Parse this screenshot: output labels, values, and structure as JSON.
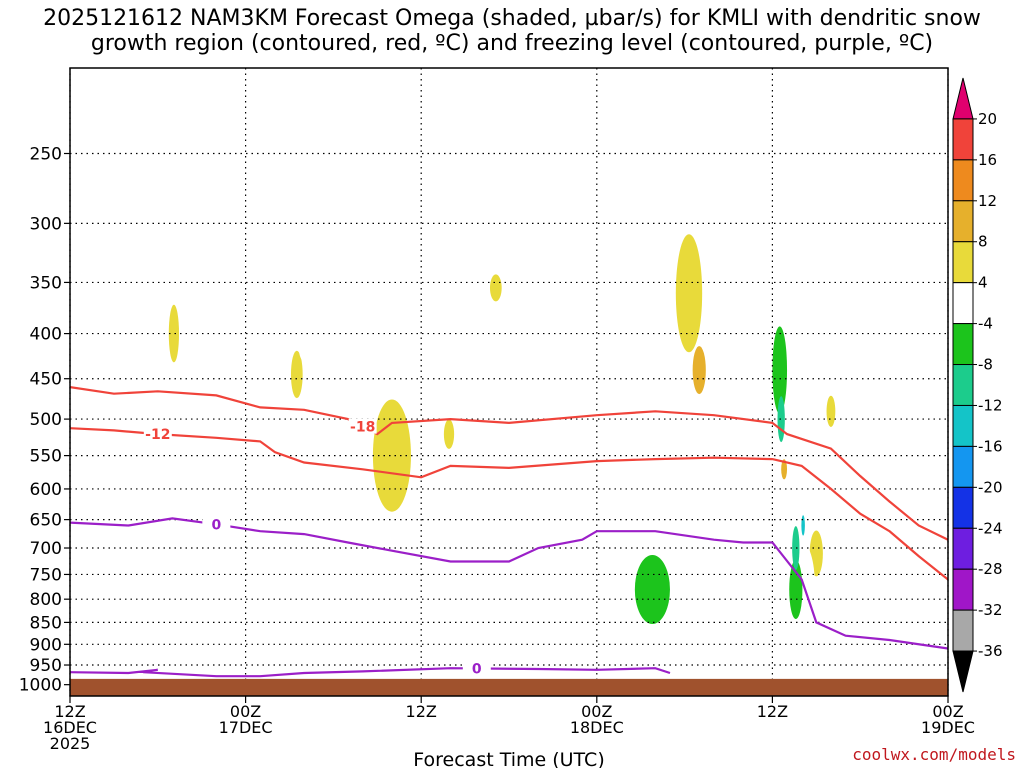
{
  "title_line1": "2025121612 NAM3KM Forecast Omega (shaded, µbar/s) for KMLI with dendritic snow",
  "title_line2": "growth region (contoured, red, ºC) and freezing level (contoured, purple, ºC)",
  "credit": "coolwx.com/models",
  "colors": {
    "terrain": "#a0522d",
    "dgz": "#f0433a",
    "freezing": "#9b1fc8",
    "grid": "#000000"
  },
  "chart_data": {
    "type": "heatmap",
    "xlabel": "Forecast Time (UTC)",
    "ylabel": "",
    "x_ticks": [
      {
        "hours": 0,
        "lines": [
          "12Z",
          "16DEC",
          "2025"
        ]
      },
      {
        "hours": 12,
        "lines": [
          "00Z",
          "17DEC"
        ]
      },
      {
        "hours": 24,
        "lines": [
          "12Z"
        ]
      },
      {
        "hours": 36,
        "lines": [
          "00Z",
          "18DEC"
        ]
      },
      {
        "hours": 48,
        "lines": [
          "12Z"
        ]
      },
      {
        "hours": 60,
        "lines": [
          "00Z",
          "19DEC"
        ]
      }
    ],
    "xlim": [
      0,
      60
    ],
    "y_ticks": [
      250,
      300,
      350,
      400,
      450,
      500,
      550,
      600,
      650,
      700,
      750,
      800,
      850,
      900,
      950,
      1000
    ],
    "ylim_hPa": [
      200,
      1030
    ],
    "colorbar": {
      "unit": "µbar/s",
      "labels": [
        "20",
        "16",
        "12",
        "8",
        "4",
        "-4",
        "-8",
        "-12",
        "-16",
        "-20",
        "-24",
        "-28",
        "-32",
        "-36"
      ],
      "colors": [
        "#e0006e",
        "#f0433a",
        "#ee8a1e",
        "#e6b02c",
        "#e8da3a",
        "#ffffff",
        "#1cc41c",
        "#1ccc8c",
        "#14c4c8",
        "#1496f0",
        "#1432e6",
        "#6e1ee0",
        "#a016c8",
        "#a8a8a8",
        "#000000"
      ]
    },
    "omega_regions": [
      {
        "level": "4",
        "x": 15.5,
        "p": 445,
        "w": 0.4,
        "hp": 55
      },
      {
        "level": "4",
        "x": 7.1,
        "p": 400,
        "w": 0.35,
        "hp": 60
      },
      {
        "level": "4",
        "x": 22.0,
        "p": 550,
        "w": 1.3,
        "hp": 160
      },
      {
        "level": "4",
        "x": 25.9,
        "p": 520,
        "w": 0.35,
        "hp": 40
      },
      {
        "level": "4",
        "x": 29.1,
        "p": 355,
        "w": 0.4,
        "hp": 25
      },
      {
        "level": "4",
        "x": 42.3,
        "p": 360,
        "w": 0.9,
        "hp": 110
      },
      {
        "level": "4",
        "x": 51.0,
        "p": 710,
        "w": 0.45,
        "hp": 85
      },
      {
        "level": "4",
        "x": 52.0,
        "p": 490,
        "w": 0.3,
        "hp": 40
      },
      {
        "level": "8",
        "x": 43.0,
        "p": 440,
        "w": 0.45,
        "hp": 55
      },
      {
        "level": "8",
        "x": 48.8,
        "p": 570,
        "w": 0.2,
        "hp": 30
      },
      {
        "level": "-4",
        "x": 13.0,
        "p": 380,
        "w": 0.35,
        "hp": 100
      },
      {
        "level": "-4",
        "x": 15.9,
        "p": 400,
        "w": 0.35,
        "hp": 55
      },
      {
        "level": "-4",
        "x": 26.3,
        "p": 300,
        "w": 0.25,
        "hp": 40
      },
      {
        "level": "-4",
        "x": 27.5,
        "p": 650,
        "w": 0.25,
        "hp": 40
      },
      {
        "level": "-4",
        "x": 39.5,
        "p": 820,
        "w": 2.2,
        "hp": 240
      },
      {
        "level": "-4",
        "x": 37.5,
        "p": 900,
        "w": 0.9,
        "hp": 35
      },
      {
        "level": "-4",
        "x": 44.0,
        "p": 300,
        "w": 0.4,
        "hp": 55
      },
      {
        "level": "-4",
        "x": 46.5,
        "p": 360,
        "w": 1.4,
        "hp": 110
      },
      {
        "level": "-4",
        "x": 48.4,
        "p": 450,
        "w": 1.1,
        "hp": 150
      },
      {
        "level": "-4",
        "x": 48.3,
        "p": 600,
        "w": 0.4,
        "hp": 60
      },
      {
        "level": "-4",
        "x": 50.0,
        "p": 770,
        "w": 0.9,
        "hp": 170
      },
      {
        "level": "-4",
        "x": 49.3,
        "p": 430,
        "w": 0.7,
        "hp": 60
      },
      {
        "level": "-4",
        "x": 57.0,
        "p": 880,
        "w": 1.2,
        "hp": 30
      },
      {
        "level": "-4",
        "x": 58.6,
        "p": 540,
        "w": 0.5,
        "hp": 50
      },
      {
        "level": "-8",
        "x": 39.8,
        "p": 780,
        "w": 1.2,
        "hp": 140
      },
      {
        "level": "-8",
        "x": 48.5,
        "p": 440,
        "w": 0.5,
        "hp": 100
      },
      {
        "level": "-8",
        "x": 49.6,
        "p": 780,
        "w": 0.45,
        "hp": 120
      },
      {
        "level": "-12",
        "x": 48.6,
        "p": 500,
        "w": 0.25,
        "hp": 60
      },
      {
        "level": "-12",
        "x": 49.6,
        "p": 700,
        "w": 0.25,
        "hp": 80
      },
      {
        "level": "-16",
        "x": 50.1,
        "p": 660,
        "w": 0.12,
        "hp": 35
      }
    ],
    "dgz_lines": [
      {
        "label": "-12",
        "label_at": 6.0,
        "points": [
          [
            0,
            512
          ],
          [
            3,
            515
          ],
          [
            6,
            520
          ],
          [
            10,
            525
          ],
          [
            13,
            530
          ],
          [
            14,
            545
          ],
          [
            16,
            560
          ],
          [
            20,
            570
          ],
          [
            24,
            582
          ],
          [
            26,
            565
          ],
          [
            30,
            568
          ],
          [
            36,
            558
          ],
          [
            40,
            555
          ],
          [
            44,
            553
          ],
          [
            48,
            555
          ],
          [
            50,
            565
          ],
          [
            52,
            600
          ],
          [
            54,
            640
          ],
          [
            56,
            670
          ],
          [
            58,
            715
          ],
          [
            60,
            760
          ]
        ]
      },
      {
        "label": "-18",
        "label_at": 20.0,
        "points": [
          [
            0,
            460
          ],
          [
            3,
            468
          ],
          [
            6,
            465
          ],
          [
            10,
            470
          ],
          [
            13,
            485
          ],
          [
            16,
            488
          ],
          [
            19,
            500
          ],
          [
            21,
            520
          ],
          [
            22,
            505
          ],
          [
            26,
            500
          ],
          [
            30,
            505
          ],
          [
            36,
            495
          ],
          [
            40,
            490
          ],
          [
            44,
            495
          ],
          [
            48,
            505
          ],
          [
            49,
            520
          ],
          [
            52,
            540
          ],
          [
            54,
            580
          ],
          [
            56,
            620
          ],
          [
            58,
            660
          ],
          [
            60,
            685
          ]
        ]
      }
    ],
    "freezing_lines": [
      {
        "label": "0",
        "label_at": 10.0,
        "points": [
          [
            0,
            655
          ],
          [
            4,
            660
          ],
          [
            7,
            648
          ],
          [
            10,
            658
          ],
          [
            13,
            670
          ],
          [
            16,
            675
          ],
          [
            19,
            690
          ],
          [
            22,
            705
          ],
          [
            26,
            725
          ],
          [
            30,
            725
          ],
          [
            32,
            700
          ],
          [
            35,
            685
          ],
          [
            36,
            670
          ],
          [
            40,
            670
          ],
          [
            44,
            685
          ],
          [
            46,
            690
          ],
          [
            48,
            690
          ],
          [
            50,
            760
          ],
          [
            51,
            850
          ],
          [
            53,
            880
          ],
          [
            56,
            890
          ],
          [
            60,
            910
          ]
        ]
      },
      {
        "label": "0",
        "label_at": 27.8,
        "points": [
          [
            0,
            968
          ],
          [
            4,
            970
          ],
          [
            6,
            962
          ],
          [
            5,
            968
          ],
          [
            10,
            978
          ],
          [
            13,
            978
          ],
          [
            16,
            970
          ],
          [
            20,
            966
          ],
          [
            26,
            958
          ],
          [
            32,
            960
          ],
          [
            36,
            962
          ],
          [
            40,
            958
          ],
          [
            41,
            970
          ]
        ]
      }
    ],
    "terrain_hPa": 985
  }
}
